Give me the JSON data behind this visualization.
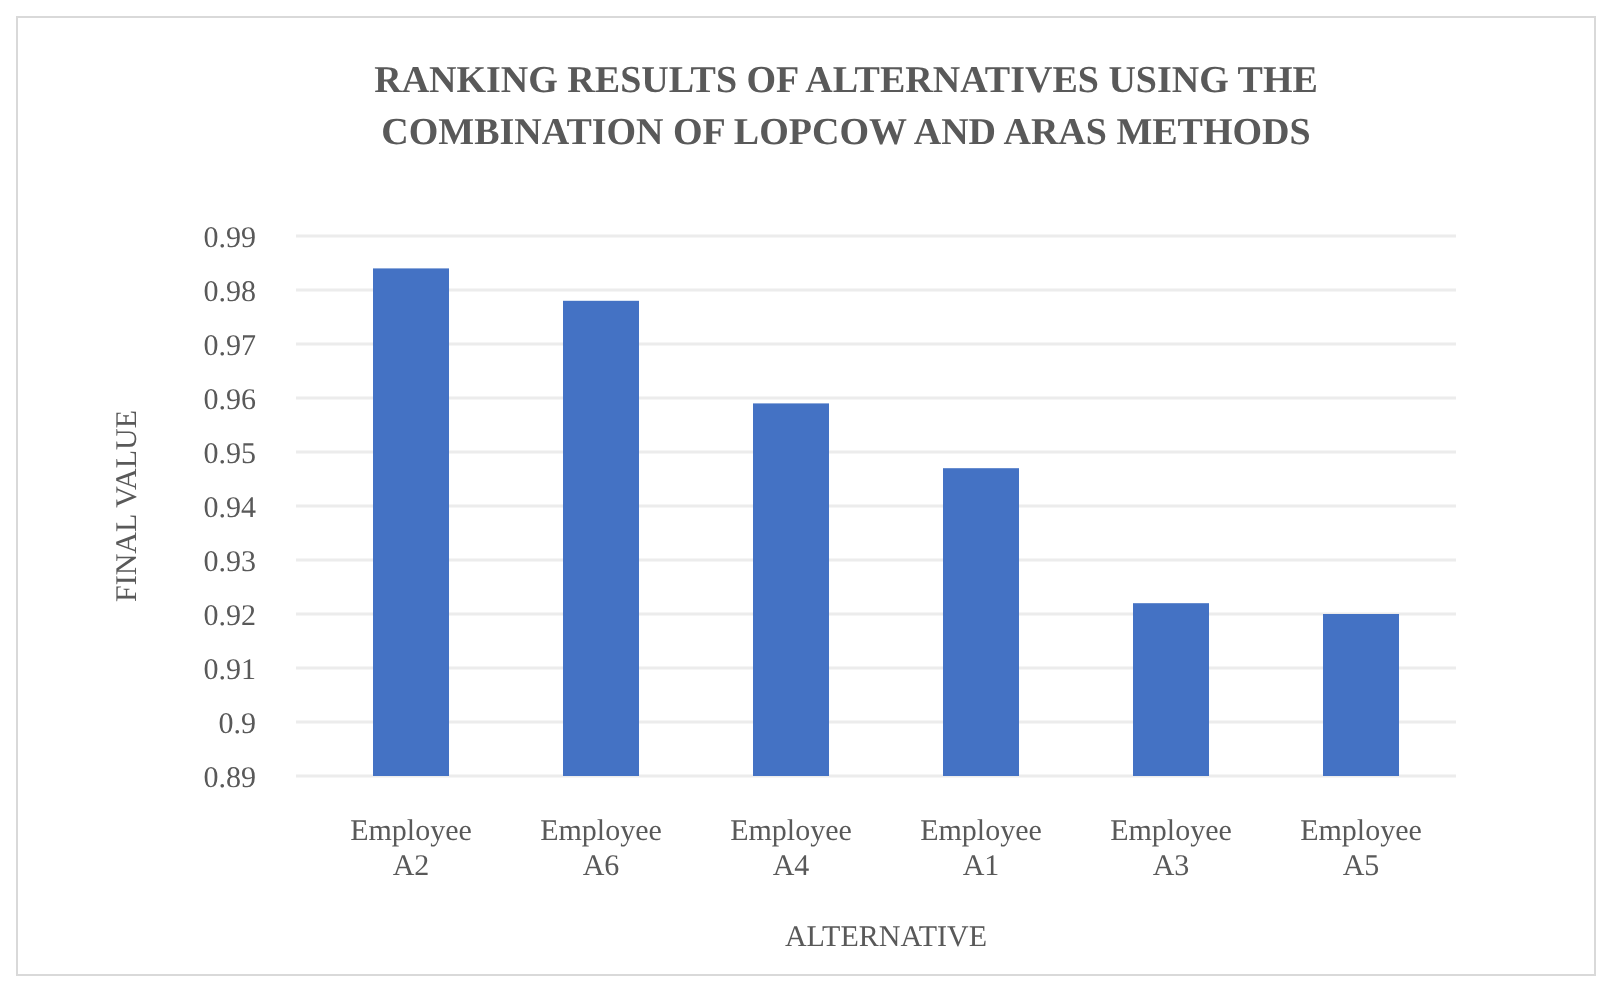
{
  "chart_data": {
    "type": "bar",
    "title": "RANKING RESULTS OF ALTERNATIVES USING THE\nCOMBINATION OF LOPCOW AND ARAS METHODS",
    "xlabel": "ALTERNATIVE",
    "ylabel": "FINAL VALUE",
    "categories": [
      "Employee\nA2",
      "Employee\nA6",
      "Employee\nA4",
      "Employee\nA1",
      "Employee\nA3",
      "Employee\nA5"
    ],
    "values": [
      0.984,
      0.978,
      0.959,
      0.947,
      0.922,
      0.92
    ],
    "color": "#4472c4",
    "ylim": [
      0.89,
      0.99
    ],
    "yticks": [
      {
        "value": 0.89,
        "label": "0.89"
      },
      {
        "value": 0.9,
        "label": "0.9"
      },
      {
        "value": 0.91,
        "label": "0.91"
      },
      {
        "value": 0.92,
        "label": "0.92"
      },
      {
        "value": 0.93,
        "label": "0.93"
      },
      {
        "value": 0.94,
        "label": "0.94"
      },
      {
        "value": 0.95,
        "label": "0.95"
      },
      {
        "value": 0.96,
        "label": "0.96"
      },
      {
        "value": 0.97,
        "label": "0.97"
      },
      {
        "value": 0.98,
        "label": "0.98"
      },
      {
        "value": 0.99,
        "label": "0.99"
      }
    ],
    "grid": "y"
  }
}
